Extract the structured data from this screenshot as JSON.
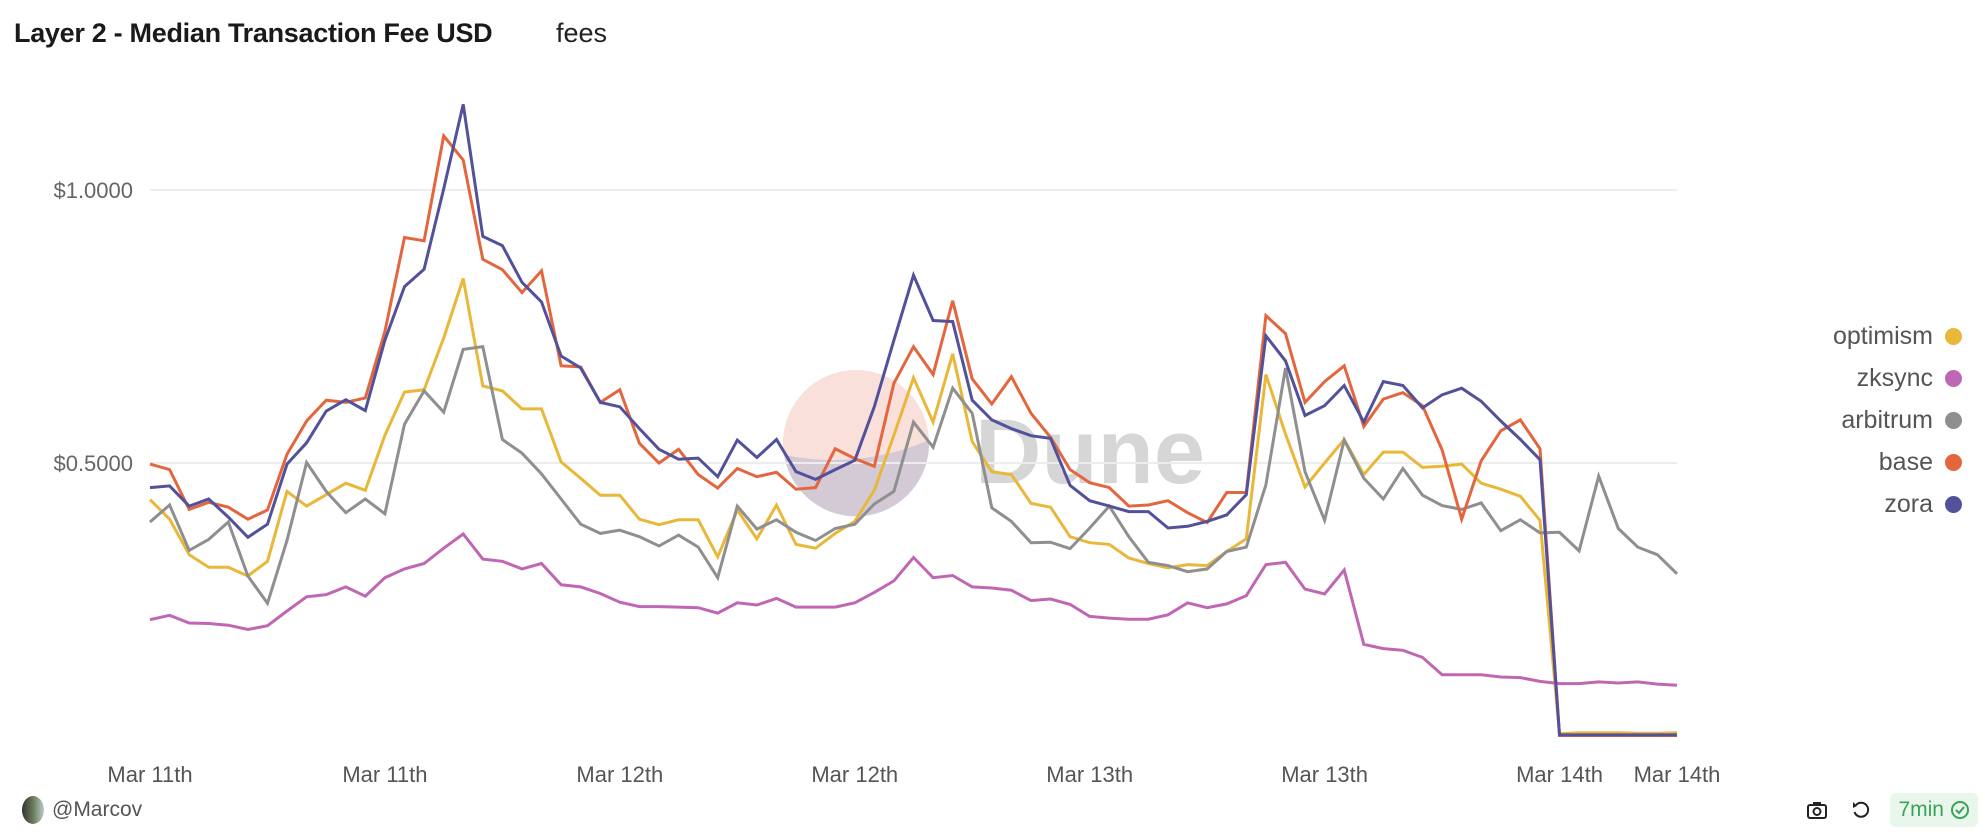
{
  "header": {
    "title": "Layer 2 - Median Transaction Fee USD",
    "subtitle": "fees"
  },
  "footer": {
    "author": "@Marcov",
    "refresh_age": "7min"
  },
  "watermark": "Dune",
  "chart_data": {
    "type": "line",
    "title": "Layer 2 - Median Transaction Fee USD",
    "xlabel": "",
    "ylabel": "",
    "ylim": [
      0,
      1.2
    ],
    "grid": true,
    "legend_position": "right",
    "y_ticks": [
      {
        "value": 1.0,
        "label": "$1.0000"
      },
      {
        "value": 0.5,
        "label": "$0.5000"
      }
    ],
    "x_ticks": [
      {
        "index": 0,
        "label": "Mar 11th"
      },
      {
        "index": 12,
        "label": "Mar 11th"
      },
      {
        "index": 24,
        "label": "Mar 12th"
      },
      {
        "index": 36,
        "label": "Mar 12th"
      },
      {
        "index": 48,
        "label": "Mar 13th"
      },
      {
        "index": 60,
        "label": "Mar 13th"
      },
      {
        "index": 72,
        "label": "Mar 14th"
      },
      {
        "index": 78,
        "label": "Mar 14th"
      }
    ],
    "n_points": 79,
    "series": [
      {
        "name": "optimism",
        "color": "#E9B73A",
        "values": [
          0.433,
          0.397,
          0.332,
          0.309,
          0.309,
          0.293,
          0.32,
          0.448,
          0.421,
          0.442,
          0.463,
          0.45,
          0.551,
          0.63,
          0.634,
          0.729,
          0.838,
          0.641,
          0.632,
          0.599,
          0.599,
          0.502,
          0.472,
          0.441,
          0.441,
          0.397,
          0.387,
          0.396,
          0.396,
          0.328,
          0.414,
          0.361,
          0.423,
          0.351,
          0.344,
          0.371,
          0.393,
          0.45,
          0.551,
          0.656,
          0.575,
          0.7,
          0.539,
          0.484,
          0.479,
          0.426,
          0.419,
          0.365,
          0.354,
          0.351,
          0.326,
          0.316,
          0.308,
          0.314,
          0.312,
          0.338,
          0.361,
          0.662,
          0.553,
          0.456,
          0.5,
          0.543,
          0.479,
          0.52,
          0.52,
          0.492,
          0.494,
          0.498,
          0.463,
          0.452,
          0.439,
          0.395,
          0.004,
          0.006,
          0.006,
          0.006,
          0.005,
          0.005,
          0.006
        ]
      },
      {
        "name": "zksync",
        "color": "#C067B4",
        "values": [
          0.213,
          0.221,
          0.207,
          0.206,
          0.203,
          0.195,
          0.202,
          0.229,
          0.255,
          0.259,
          0.273,
          0.256,
          0.29,
          0.306,
          0.316,
          0.344,
          0.37,
          0.324,
          0.32,
          0.306,
          0.316,
          0.277,
          0.273,
          0.261,
          0.245,
          0.237,
          0.237,
          0.236,
          0.235,
          0.225,
          0.244,
          0.24,
          0.252,
          0.236,
          0.236,
          0.236,
          0.244,
          0.263,
          0.284,
          0.327,
          0.29,
          0.294,
          0.273,
          0.271,
          0.267,
          0.248,
          0.251,
          0.241,
          0.219,
          0.216,
          0.214,
          0.214,
          0.222,
          0.244,
          0.235,
          0.242,
          0.257,
          0.314,
          0.318,
          0.269,
          0.26,
          0.304,
          0.168,
          0.16,
          0.157,
          0.144,
          0.112,
          0.112,
          0.112,
          0.108,
          0.107,
          0.1,
          0.096,
          0.096,
          0.099,
          0.097,
          0.099,
          0.095,
          0.093
        ]
      },
      {
        "name": "arbitrum",
        "color": "#8F8F8F",
        "values": [
          0.392,
          0.423,
          0.34,
          0.36,
          0.392,
          0.293,
          0.243,
          0.358,
          0.501,
          0.448,
          0.409,
          0.434,
          0.407,
          0.571,
          0.632,
          0.593,
          0.708,
          0.713,
          0.543,
          0.518,
          0.48,
          0.434,
          0.388,
          0.371,
          0.377,
          0.365,
          0.348,
          0.368,
          0.346,
          0.29,
          0.421,
          0.379,
          0.396,
          0.373,
          0.358,
          0.38,
          0.388,
          0.425,
          0.448,
          0.575,
          0.529,
          0.637,
          0.591,
          0.418,
          0.393,
          0.354,
          0.355,
          0.343,
          0.381,
          0.421,
          0.365,
          0.318,
          0.312,
          0.301,
          0.306,
          0.338,
          0.346,
          0.46,
          0.674,
          0.484,
          0.395,
          0.542,
          0.472,
          0.434,
          0.49,
          0.441,
          0.422,
          0.415,
          0.427,
          0.376,
          0.396,
          0.372,
          0.373,
          0.339,
          0.476,
          0.38,
          0.346,
          0.332,
          0.297
        ]
      },
      {
        "name": "base",
        "color": "#E3663F",
        "values": [
          0.498,
          0.488,
          0.415,
          0.428,
          0.419,
          0.397,
          0.414,
          0.516,
          0.577,
          0.615,
          0.611,
          0.619,
          0.741,
          0.913,
          0.907,
          1.099,
          1.055,
          0.873,
          0.854,
          0.812,
          0.852,
          0.678,
          0.676,
          0.611,
          0.634,
          0.536,
          0.5,
          0.525,
          0.479,
          0.454,
          0.49,
          0.475,
          0.483,
          0.452,
          0.455,
          0.526,
          0.508,
          0.494,
          0.646,
          0.713,
          0.662,
          0.797,
          0.654,
          0.608,
          0.658,
          0.591,
          0.547,
          0.488,
          0.464,
          0.455,
          0.421,
          0.423,
          0.431,
          0.409,
          0.391,
          0.446,
          0.446,
          0.77,
          0.737,
          0.611,
          0.649,
          0.678,
          0.567,
          0.617,
          0.629,
          0.605,
          0.524,
          0.397,
          0.504,
          0.559,
          0.579,
          0.526,
          0.001,
          0.001,
          0.001,
          0.001,
          0.001,
          0.001,
          0.001
        ]
      },
      {
        "name": "zora",
        "color": "#52519A",
        "values": [
          0.455,
          0.458,
          0.421,
          0.434,
          0.401,
          0.364,
          0.388,
          0.498,
          0.537,
          0.595,
          0.616,
          0.596,
          0.725,
          0.823,
          0.855,
          1.002,
          1.157,
          0.915,
          0.898,
          0.831,
          0.795,
          0.696,
          0.674,
          0.611,
          0.603,
          0.563,
          0.525,
          0.507,
          0.509,
          0.475,
          0.542,
          0.51,
          0.543,
          0.484,
          0.47,
          0.488,
          0.505,
          0.603,
          0.725,
          0.844,
          0.761,
          0.759,
          0.615,
          0.579,
          0.563,
          0.55,
          0.545,
          0.459,
          0.431,
          0.421,
          0.411,
          0.411,
          0.381,
          0.384,
          0.393,
          0.405,
          0.442,
          0.733,
          0.687,
          0.587,
          0.605,
          0.642,
          0.575,
          0.649,
          0.642,
          0.601,
          0.625,
          0.637,
          0.613,
          0.577,
          0.543,
          0.506,
          0.002,
          0.002,
          0.002,
          0.002,
          0.002,
          0.002,
          0.002
        ]
      }
    ]
  }
}
